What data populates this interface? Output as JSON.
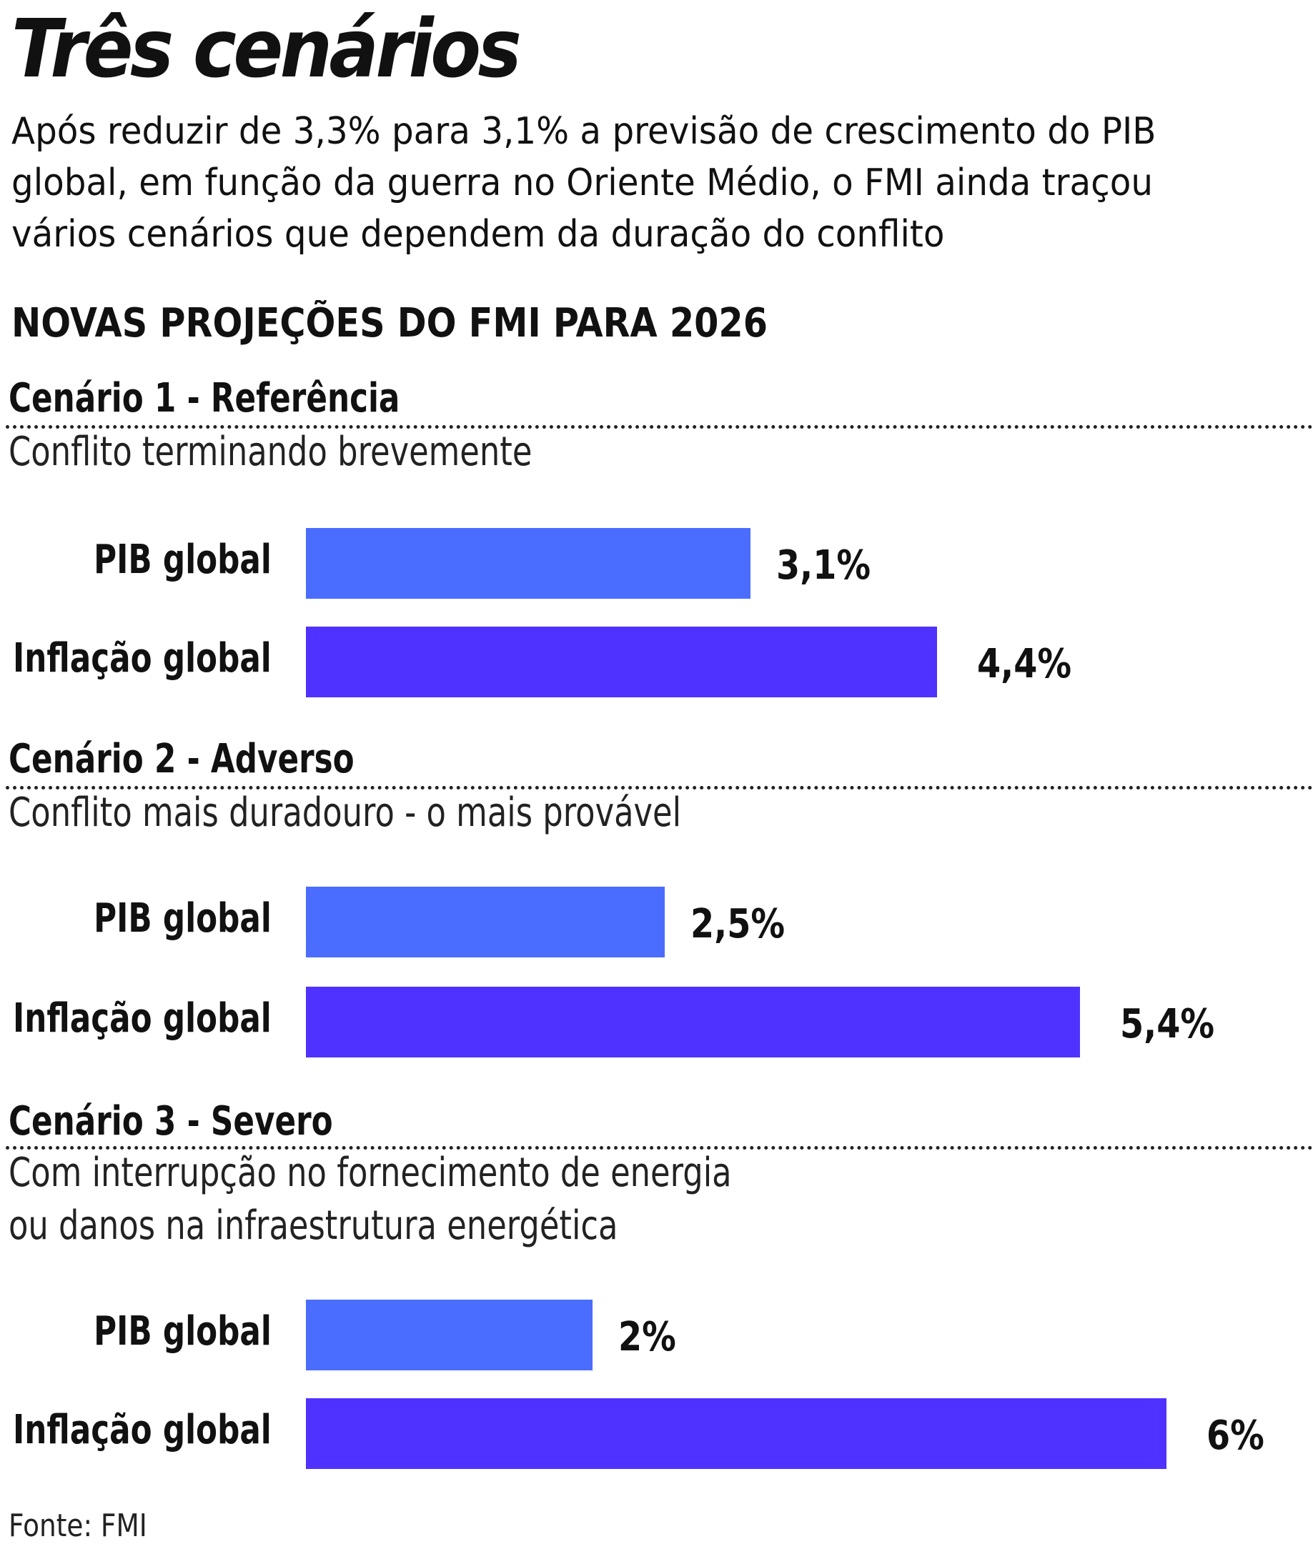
{
  "title": "Três cenários",
  "subtitle_lines": [
    "Após reduzir de 3,3% para 3,1% a previsão de crescimento do PIB",
    "global, em função da guerra no Oriente Médio, o FMI ainda traçou",
    "vários cenários que dependem da duração do conflito"
  ],
  "section_title": "NOVAS PROJEÇÕES DO FMI PARA 2026",
  "source": "Fonte: FMI",
  "colors": {
    "pib": "#4a6cff",
    "inflacao": "#4f32ff"
  },
  "chart_data": {
    "type": "bar",
    "orientation": "horizontal",
    "title": "NOVAS PROJEÇÕES DO FMI PARA 2026",
    "categories": [
      "PIB global",
      "Inflação global"
    ],
    "xlim": [
      0,
      6
    ],
    "grid": false,
    "groups": [
      {
        "heading": "Cenário 1 - Referência",
        "description": [
          "Conflito terminando brevemente"
        ],
        "bars": [
          {
            "label": "PIB global",
            "value": 3.1,
            "value_label": "3,1%"
          },
          {
            "label": "Inflação global",
            "value": 4.4,
            "value_label": "4,4%"
          }
        ]
      },
      {
        "heading": "Cenário 2 - Adverso",
        "description": [
          "Conflito mais duradouro - o mais provável"
        ],
        "bars": [
          {
            "label": "PIB global",
            "value": 2.5,
            "value_label": "2,5%"
          },
          {
            "label": "Inflação global",
            "value": 5.4,
            "value_label": "5,4%"
          }
        ]
      },
      {
        "heading": "Cenário 3 - Severo",
        "description": [
          "Com interrupção no fornecimento de energia",
          "ou danos na infraestrutura energética"
        ],
        "bars": [
          {
            "label": "PIB global",
            "value": 2,
            "value_label": "2%"
          },
          {
            "label": "Inflação global",
            "value": 6,
            "value_label": "6%"
          }
        ]
      }
    ]
  }
}
